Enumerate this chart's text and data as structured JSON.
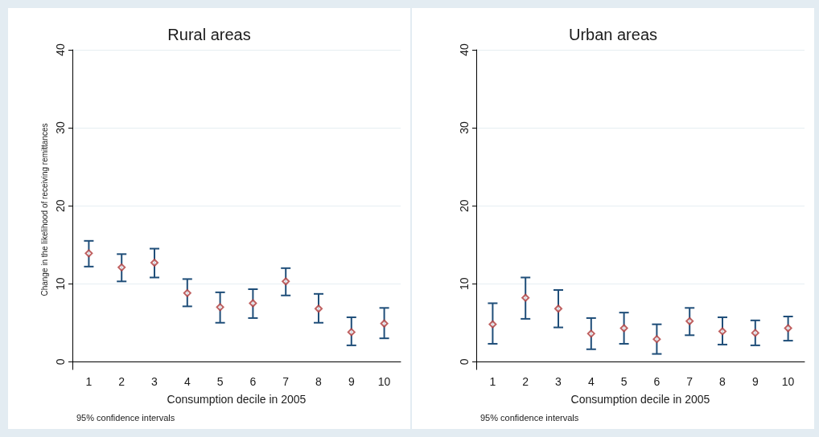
{
  "chart_data": [
    {
      "type": "scatter",
      "title": "Rural areas",
      "xlabel": "Consumption decile in 2005",
      "ylabel": "Change in the likelihood of receiving remittances",
      "annotations": [
        "95% confidence intervals"
      ],
      "categories": [
        "1",
        "2",
        "3",
        "4",
        "5",
        "6",
        "7",
        "8",
        "9",
        "10"
      ],
      "series": [
        {
          "color": "#b03a3a",
          "values": [
            13.9,
            12.1,
            12.7,
            8.8,
            7.0,
            7.5,
            10.3,
            6.8,
            3.8,
            4.9
          ],
          "errors": [
            [
              12.2,
              15.5
            ],
            [
              10.3,
              13.8
            ],
            [
              10.8,
              14.5
            ],
            [
              7.1,
              10.6
            ],
            [
              5.0,
              8.9
            ],
            [
              5.6,
              9.3
            ],
            [
              8.5,
              12.0
            ],
            [
              5.0,
              8.7
            ],
            [
              2.1,
              5.7
            ],
            [
              3.0,
              6.9
            ]
          ]
        }
      ],
      "ylim": [
        -1,
        40
      ],
      "yticks": [
        0,
        10,
        20,
        30,
        40
      ],
      "grid": "y",
      "marker": "diamond"
    },
    {
      "type": "scatter",
      "title": "Urban areas",
      "xlabel": "Consumption decile in 2005",
      "annotations": [
        "95% confidence intervals"
      ],
      "categories": [
        "1",
        "2",
        "3",
        "4",
        "5",
        "6",
        "7",
        "8",
        "9",
        "10"
      ],
      "series": [
        {
          "color": "#b03a3a",
          "values": [
            4.8,
            8.2,
            6.8,
            3.6,
            4.3,
            2.9,
            5.2,
            3.9,
            3.7,
            4.3
          ],
          "errors": [
            [
              2.3,
              7.5
            ],
            [
              5.5,
              10.8
            ],
            [
              4.4,
              9.2
            ],
            [
              1.6,
              5.6
            ],
            [
              2.3,
              6.3
            ],
            [
              1.0,
              4.8
            ],
            [
              3.4,
              6.9
            ],
            [
              2.2,
              5.7
            ],
            [
              2.1,
              5.3
            ],
            [
              2.7,
              5.8
            ]
          ]
        }
      ],
      "ylim": [
        -1,
        40
      ],
      "yticks": [
        0,
        10,
        20,
        30,
        40
      ],
      "grid": "y",
      "marker": "diamond"
    }
  ]
}
